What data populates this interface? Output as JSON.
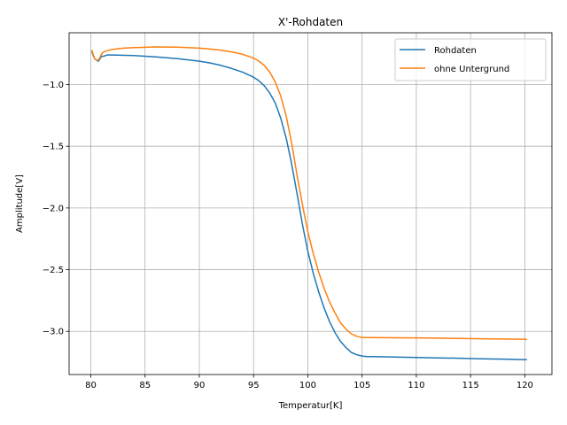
{
  "chart_data": {
    "type": "line",
    "title": "X'-Rohdaten",
    "xlabel": "Temperatur[K]",
    "ylabel": "Amplitude[V]",
    "xlim": [
      78.0,
      122.5
    ],
    "ylim": [
      -3.35,
      -0.58
    ],
    "xticks": [
      80,
      85,
      90,
      95,
      100,
      105,
      110,
      115,
      120
    ],
    "yticks": [
      -3.0,
      -2.5,
      -2.0,
      -1.5,
      -1.0
    ],
    "xtick_labels": [
      "80",
      "85",
      "90",
      "95",
      "100",
      "105",
      "110",
      "115",
      "120"
    ],
    "ytick_labels": [
      "−3.0",
      "−2.5",
      "−2.0",
      "−1.5",
      "−1.0"
    ],
    "grid": true,
    "legend_position": "top-right",
    "series": [
      {
        "name": "Rohdaten",
        "color": "#1f77b4",
        "x": [
          80.1,
          80.2,
          80.35,
          80.5,
          80.7,
          80.85,
          81.0,
          81.2,
          81.5,
          82,
          84,
          86,
          88,
          90,
          91,
          92,
          93,
          94,
          95,
          95.5,
          96,
          96.5,
          97,
          97.5,
          98,
          98.5,
          99,
          99.5,
          100,
          100.5,
          101,
          101.5,
          102,
          102.5,
          103,
          103.5,
          104,
          104.5,
          105,
          105.5,
          106,
          108,
          110,
          112,
          114,
          116,
          118,
          120.2
        ],
        "y": [
          -0.73,
          -0.76,
          -0.79,
          -0.8,
          -0.81,
          -0.79,
          -0.77,
          -0.77,
          -0.76,
          -0.76,
          -0.765,
          -0.775,
          -0.79,
          -0.81,
          -0.825,
          -0.845,
          -0.87,
          -0.9,
          -0.94,
          -0.97,
          -1.01,
          -1.07,
          -1.15,
          -1.27,
          -1.43,
          -1.64,
          -1.88,
          -2.13,
          -2.35,
          -2.53,
          -2.68,
          -2.81,
          -2.92,
          -3.01,
          -3.08,
          -3.13,
          -3.17,
          -3.19,
          -3.2,
          -3.205,
          -3.205,
          -3.208,
          -3.212,
          -3.215,
          -3.218,
          -3.222,
          -3.225,
          -3.23
        ]
      },
      {
        "name": "ohne Untergrund",
        "color": "#ff7f0e",
        "x": [
          80.1,
          80.2,
          80.35,
          80.5,
          80.7,
          80.85,
          81.0,
          81.2,
          81.5,
          82,
          83,
          84,
          86,
          88,
          90,
          91,
          92,
          93,
          94,
          95,
          95.5,
          96,
          96.5,
          97,
          97.5,
          98,
          98.5,
          99,
          99.5,
          100,
          100.5,
          101,
          101.5,
          102,
          102.5,
          103,
          103.5,
          104,
          104.5,
          105,
          105.5,
          106,
          108,
          110,
          112,
          114,
          116,
          118,
          120.2
        ],
        "y": [
          -0.72,
          -0.75,
          -0.79,
          -0.8,
          -0.8,
          -0.78,
          -0.75,
          -0.735,
          -0.725,
          -0.715,
          -0.705,
          -0.7,
          -0.695,
          -0.697,
          -0.705,
          -0.712,
          -0.722,
          -0.735,
          -0.755,
          -0.785,
          -0.81,
          -0.845,
          -0.9,
          -0.98,
          -1.09,
          -1.25,
          -1.47,
          -1.73,
          -1.97,
          -2.19,
          -2.37,
          -2.52,
          -2.65,
          -2.76,
          -2.85,
          -2.93,
          -2.98,
          -3.02,
          -3.04,
          -3.05,
          -3.05,
          -3.05,
          -3.052,
          -3.053,
          -3.055,
          -3.057,
          -3.06,
          -3.062,
          -3.065
        ]
      }
    ]
  }
}
